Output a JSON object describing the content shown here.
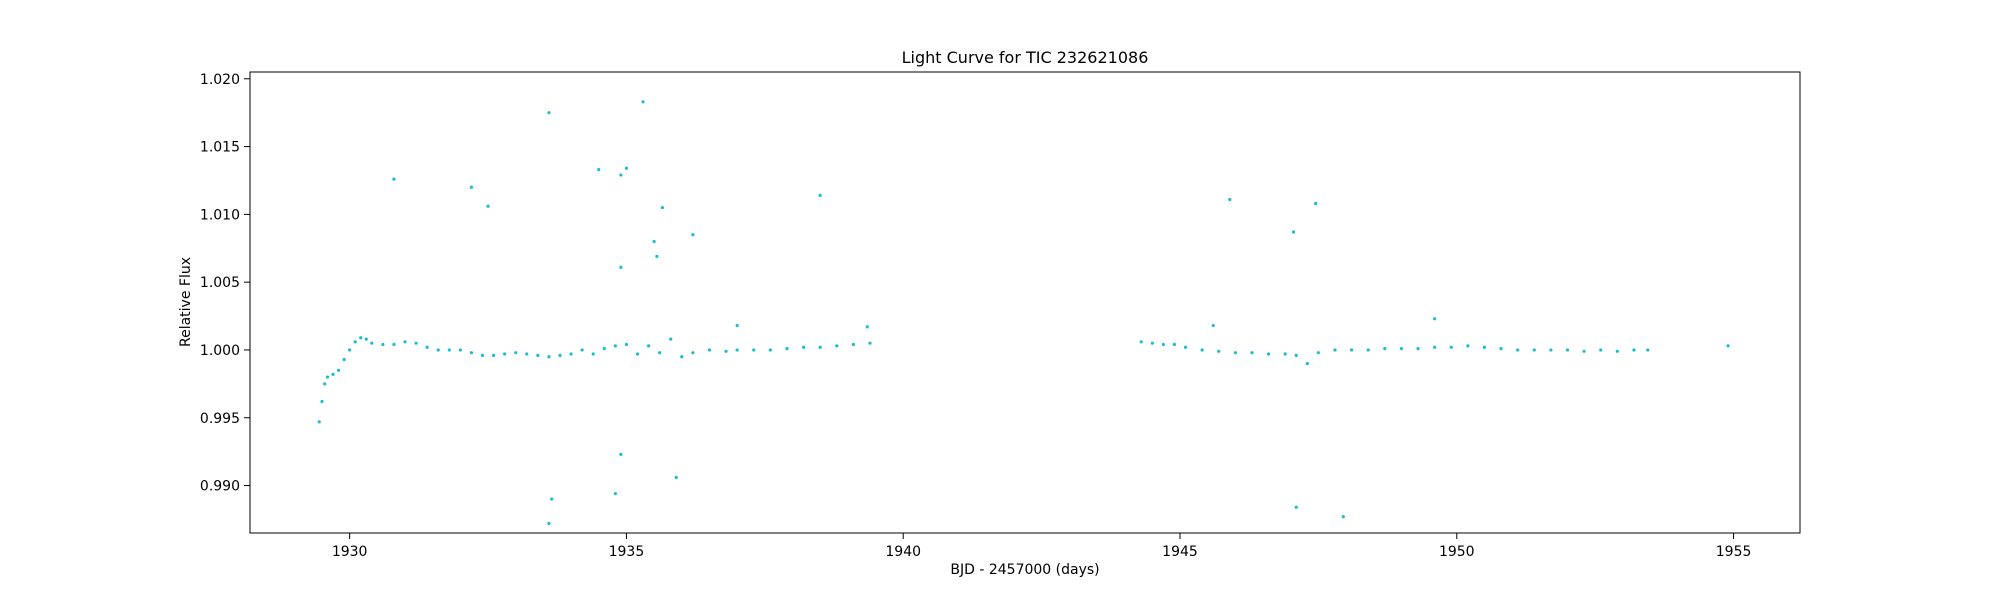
{
  "chart_data": {
    "type": "scatter",
    "title": "Light Curve for TIC 232621086",
    "xlabel": "BJD - 2457000 (days)",
    "ylabel": "Relative Flux",
    "xlim": [
      1928.2,
      1956.2
    ],
    "ylim": [
      0.9865,
      1.0205
    ],
    "xticks": [
      1930,
      1935,
      1940,
      1945,
      1950,
      1955
    ],
    "yticks": [
      0.99,
      0.995,
      1.0,
      1.005,
      1.01,
      1.015,
      1.02
    ],
    "xtick_labels": [
      "1930",
      "1935",
      "1940",
      "1945",
      "1950",
      "1955"
    ],
    "ytick_labels": [
      "0.990",
      "0.995",
      "1.000",
      "1.005",
      "1.010",
      "1.015",
      "1.020"
    ],
    "grid": false,
    "series": [
      {
        "color": "#17becf",
        "points": [
          {
            "x": 1929.45,
            "y": 0.9947
          },
          {
            "x": 1929.5,
            "y": 0.9962
          },
          {
            "x": 1929.55,
            "y": 0.9975
          },
          {
            "x": 1929.6,
            "y": 0.998
          },
          {
            "x": 1929.7,
            "y": 0.9982
          },
          {
            "x": 1929.8,
            "y": 0.9985
          },
          {
            "x": 1929.9,
            "y": 0.9993
          },
          {
            "x": 1930.0,
            "y": 1.0
          },
          {
            "x": 1930.1,
            "y": 1.0006
          },
          {
            "x": 1930.2,
            "y": 1.0009
          },
          {
            "x": 1930.3,
            "y": 1.0008
          },
          {
            "x": 1930.4,
            "y": 1.0005
          },
          {
            "x": 1930.6,
            "y": 1.0004
          },
          {
            "x": 1930.8,
            "y": 1.0004
          },
          {
            "x": 1931.0,
            "y": 1.0006
          },
          {
            "x": 1931.2,
            "y": 1.0005
          },
          {
            "x": 1931.4,
            "y": 1.0002
          },
          {
            "x": 1931.6,
            "y": 1.0
          },
          {
            "x": 1931.8,
            "y": 1.0
          },
          {
            "x": 1932.0,
            "y": 1.0
          },
          {
            "x": 1932.2,
            "y": 0.9998
          },
          {
            "x": 1932.4,
            "y": 0.9996
          },
          {
            "x": 1932.6,
            "y": 0.9996
          },
          {
            "x": 1932.8,
            "y": 0.9997
          },
          {
            "x": 1933.0,
            "y": 0.9998
          },
          {
            "x": 1933.2,
            "y": 0.9997
          },
          {
            "x": 1933.4,
            "y": 0.9996
          },
          {
            "x": 1933.6,
            "y": 0.9995
          },
          {
            "x": 1933.8,
            "y": 0.9996
          },
          {
            "x": 1934.0,
            "y": 0.9997
          },
          {
            "x": 1934.2,
            "y": 1.0
          },
          {
            "x": 1934.4,
            "y": 0.9997
          },
          {
            "x": 1934.6,
            "y": 1.0001
          },
          {
            "x": 1934.8,
            "y": 1.0003
          },
          {
            "x": 1935.0,
            "y": 1.0004
          },
          {
            "x": 1935.2,
            "y": 0.9997
          },
          {
            "x": 1935.4,
            "y": 1.0003
          },
          {
            "x": 1935.6,
            "y": 0.9998
          },
          {
            "x": 1935.8,
            "y": 1.0008
          },
          {
            "x": 1936.0,
            "y": 0.9995
          },
          {
            "x": 1936.2,
            "y": 0.9998
          },
          {
            "x": 1936.5,
            "y": 1.0
          },
          {
            "x": 1936.8,
            "y": 0.9999
          },
          {
            "x": 1937.0,
            "y": 1.0
          },
          {
            "x": 1937.3,
            "y": 1.0
          },
          {
            "x": 1937.6,
            "y": 1.0
          },
          {
            "x": 1937.9,
            "y": 1.0001
          },
          {
            "x": 1938.2,
            "y": 1.0002
          },
          {
            "x": 1938.5,
            "y": 1.0002
          },
          {
            "x": 1938.8,
            "y": 1.0003
          },
          {
            "x": 1939.1,
            "y": 1.0004
          },
          {
            "x": 1939.4,
            "y": 1.0005
          },
          {
            "x": 1944.3,
            "y": 1.0006
          },
          {
            "x": 1944.5,
            "y": 1.0005
          },
          {
            "x": 1944.7,
            "y": 1.0004
          },
          {
            "x": 1944.9,
            "y": 1.0004
          },
          {
            "x": 1945.1,
            "y": 1.0002
          },
          {
            "x": 1945.4,
            "y": 1.0
          },
          {
            "x": 1945.7,
            "y": 0.9999
          },
          {
            "x": 1946.0,
            "y": 0.9998
          },
          {
            "x": 1946.3,
            "y": 0.9998
          },
          {
            "x": 1946.6,
            "y": 0.9997
          },
          {
            "x": 1946.9,
            "y": 0.9997
          },
          {
            "x": 1947.1,
            "y": 0.9996
          },
          {
            "x": 1947.3,
            "y": 0.999
          },
          {
            "x": 1947.5,
            "y": 0.9998
          },
          {
            "x": 1947.8,
            "y": 1.0
          },
          {
            "x": 1948.1,
            "y": 1.0
          },
          {
            "x": 1948.4,
            "y": 1.0
          },
          {
            "x": 1948.7,
            "y": 1.0001
          },
          {
            "x": 1949.0,
            "y": 1.0001
          },
          {
            "x": 1949.3,
            "y": 1.0001
          },
          {
            "x": 1949.6,
            "y": 1.0002
          },
          {
            "x": 1949.9,
            "y": 1.0002
          },
          {
            "x": 1950.2,
            "y": 1.0003
          },
          {
            "x": 1950.5,
            "y": 1.0002
          },
          {
            "x": 1950.8,
            "y": 1.0001
          },
          {
            "x": 1951.1,
            "y": 1.0
          },
          {
            "x": 1951.4,
            "y": 1.0
          },
          {
            "x": 1951.7,
            "y": 1.0
          },
          {
            "x": 1952.0,
            "y": 1.0
          },
          {
            "x": 1952.3,
            "y": 0.9999
          },
          {
            "x": 1952.6,
            "y": 1.0
          },
          {
            "x": 1952.9,
            "y": 0.9999
          },
          {
            "x": 1953.2,
            "y": 1.0
          },
          {
            "x": 1953.45,
            "y": 1.0
          },
          {
            "x": 1930.8,
            "y": 1.0126
          },
          {
            "x": 1932.2,
            "y": 1.012
          },
          {
            "x": 1932.5,
            "y": 1.0106
          },
          {
            "x": 1933.6,
            "y": 1.0175
          },
          {
            "x": 1933.65,
            "y": 0.989
          },
          {
            "x": 1933.6,
            "y": 0.9872
          },
          {
            "x": 1934.5,
            "y": 1.0133
          },
          {
            "x": 1934.9,
            "y": 1.0129
          },
          {
            "x": 1935.0,
            "y": 1.0134
          },
          {
            "x": 1934.9,
            "y": 1.0061
          },
          {
            "x": 1935.3,
            "y": 1.0183
          },
          {
            "x": 1935.5,
            "y": 1.008
          },
          {
            "x": 1935.55,
            "y": 1.0069
          },
          {
            "x": 1935.65,
            "y": 1.0105
          },
          {
            "x": 1935.9,
            "y": 0.9906
          },
          {
            "x": 1934.9,
            "y": 0.9923
          },
          {
            "x": 1934.8,
            "y": 0.9894
          },
          {
            "x": 1936.2,
            "y": 1.0085
          },
          {
            "x": 1938.5,
            "y": 1.0114
          },
          {
            "x": 1937.0,
            "y": 1.0018
          },
          {
            "x": 1939.35,
            "y": 1.0017
          },
          {
            "x": 1945.9,
            "y": 1.0111
          },
          {
            "x": 1947.05,
            "y": 1.0087
          },
          {
            "x": 1947.45,
            "y": 1.0108
          },
          {
            "x": 1947.1,
            "y": 0.9884
          },
          {
            "x": 1947.95,
            "y": 0.9877
          },
          {
            "x": 1949.6,
            "y": 1.0023
          },
          {
            "x": 1954.9,
            "y": 1.0003
          },
          {
            "x": 1945.6,
            "y": 1.0018
          }
        ]
      }
    ]
  }
}
